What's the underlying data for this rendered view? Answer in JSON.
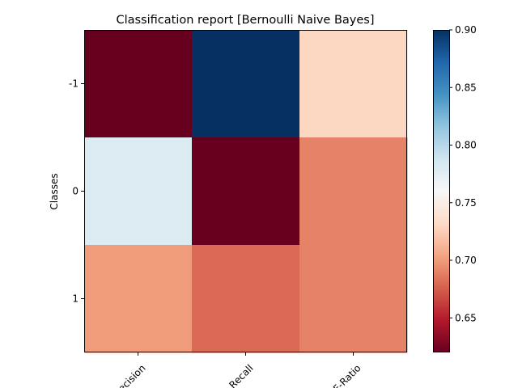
{
  "chart_data": {
    "type": "heatmap",
    "title": "Classification report  [Bernoulli Naive Bayes]",
    "xlabel": "",
    "ylabel": "Classes",
    "x_categories": [
      "Precision",
      "Recall",
      "F-Ratio"
    ],
    "y_categories": [
      "-1",
      "0",
      "1"
    ],
    "values": [
      [
        0.62,
        0.9,
        0.73
      ],
      [
        0.78,
        0.62,
        0.69
      ],
      [
        0.7,
        0.68,
        0.69
      ]
    ],
    "colorbar": {
      "min": 0.62,
      "max": 0.9,
      "ticks": [
        "0.65",
        "0.70",
        "0.75",
        "0.80",
        "0.85",
        "0.90"
      ],
      "colormap": "RdBu"
    },
    "colormap_stops": [
      "#67001f",
      "#b2182b",
      "#d6604d",
      "#f4a582",
      "#fddbc7",
      "#f7f7f7",
      "#d1e5f0",
      "#92c5de",
      "#4393c3",
      "#2166ac",
      "#053061"
    ]
  }
}
